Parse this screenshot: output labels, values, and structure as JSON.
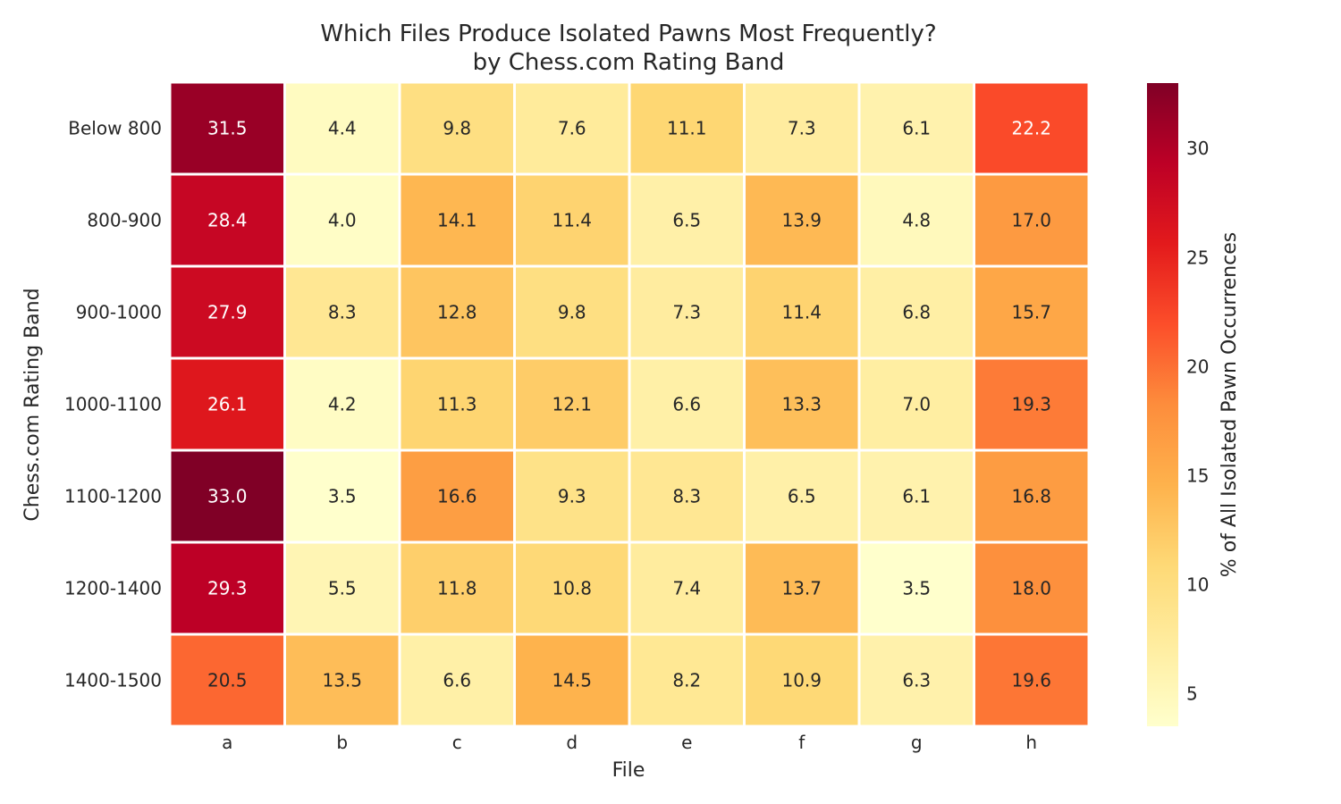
{
  "chart_data": {
    "type": "heatmap",
    "title": "Which Files Produce Isolated Pawns Most Frequently?",
    "subtitle": "by Chess.com Rating Band",
    "xlabel": "File",
    "ylabel": "Chess.com Rating Band",
    "x_categories": [
      "a",
      "b",
      "c",
      "d",
      "e",
      "f",
      "g",
      "h"
    ],
    "y_categories": [
      "Below 800",
      "800-900",
      "900-1000",
      "1000-1100",
      "1100-1200",
      "1200-1400",
      "1400-1500"
    ],
    "values": [
      [
        31.5,
        4.4,
        9.8,
        7.6,
        11.1,
        7.3,
        6.1,
        22.2
      ],
      [
        28.4,
        4.0,
        14.1,
        11.4,
        6.5,
        13.9,
        4.8,
        17.0
      ],
      [
        27.9,
        8.3,
        12.8,
        9.8,
        7.3,
        11.4,
        6.8,
        15.7
      ],
      [
        26.1,
        4.2,
        11.3,
        12.1,
        6.6,
        13.3,
        7.0,
        19.3
      ],
      [
        33.0,
        3.5,
        16.6,
        9.3,
        8.3,
        6.5,
        6.1,
        16.8
      ],
      [
        29.3,
        5.5,
        11.8,
        10.8,
        7.4,
        13.7,
        3.5,
        18.0
      ],
      [
        20.5,
        13.5,
        6.6,
        14.5,
        8.2,
        10.9,
        6.3,
        19.6
      ]
    ],
    "colorbar": {
      "label": "% of All Isolated Pawn Occurrences",
      "vmin": 3.5,
      "vmax": 33.0,
      "ticks": [
        5,
        10,
        15,
        20,
        25,
        30
      ],
      "colormap": "YlOrRd"
    }
  }
}
